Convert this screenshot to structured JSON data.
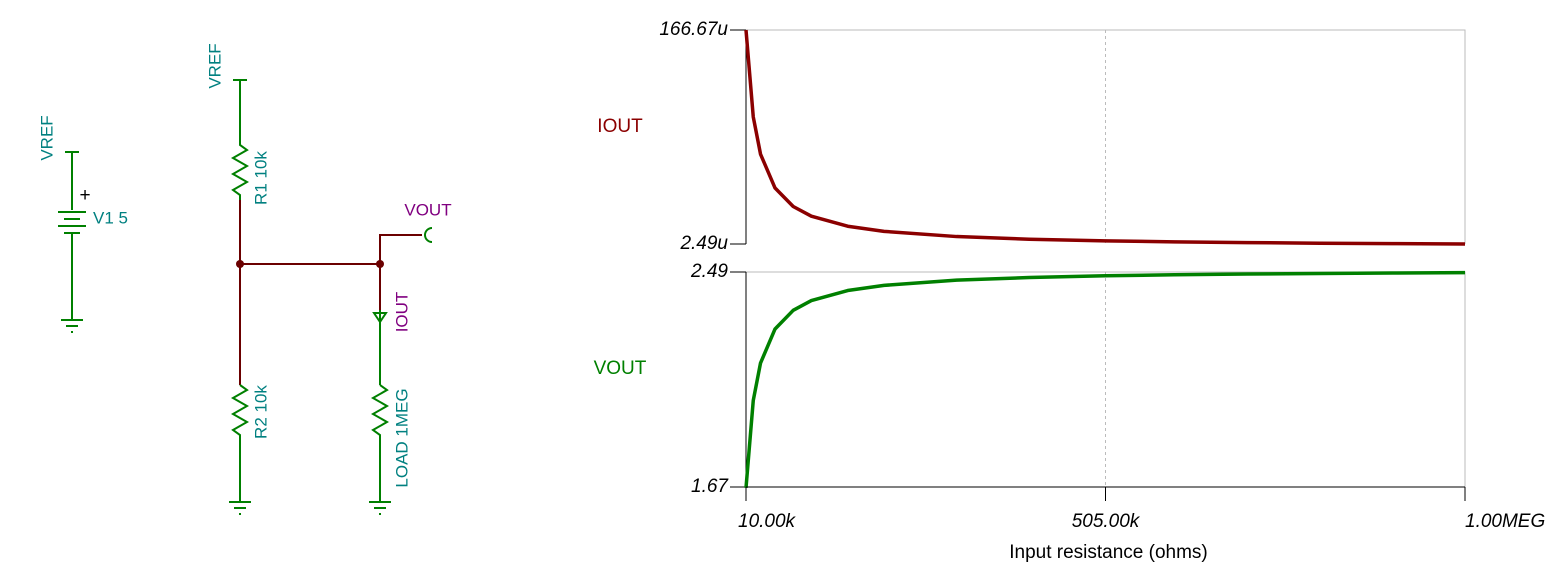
{
  "schematic": {
    "source_label": "VREF",
    "source_plus": "+",
    "source_name": "V1 5",
    "divider_label": "VREF",
    "r1": "R1 10k",
    "r2": "R2 10k",
    "out_label": "VOUT",
    "current_label": "IOUT",
    "load": "LOAD 1MEG"
  },
  "chart_data": [
    {
      "type": "line",
      "ylabel": "IOUT",
      "color": "#8b0000",
      "x": [
        10000,
        20000,
        30000,
        50000,
        75000,
        100000,
        150000,
        200000,
        300000,
        400000,
        505000,
        600000,
        700000,
        800000,
        900000,
        1000000
      ],
      "values": [
        0.00016667,
        0.0001,
        7.143e-05,
        4.545e-05,
        3.125e-05,
        2.381e-05,
        1.613e-05,
        1.22e-05,
        8.197e-06,
        6.173e-06,
        4.902e-06,
        4.132e-06,
        3.546e-06,
        3.106e-06,
        2.762e-06,
        2.488e-06
      ],
      "xlim": [
        10000,
        1000000
      ],
      "ylim": [
        2.49e-06,
        0.00016667
      ],
      "yticks": [
        {
          "value": 0.00016667,
          "label": "166.67u"
        },
        {
          "value": 2.49e-06,
          "label": "2.49u"
        }
      ]
    },
    {
      "type": "line",
      "ylabel": "VOUT",
      "color": "#008000",
      "xlabel": "Input resistance (ohms)",
      "x": [
        10000,
        20000,
        30000,
        50000,
        75000,
        100000,
        150000,
        200000,
        300000,
        400000,
        505000,
        600000,
        700000,
        800000,
        900000,
        1000000
      ],
      "values": [
        1.6667,
        2.0,
        2.1429,
        2.2727,
        2.3438,
        2.381,
        2.4194,
        2.439,
        2.459,
        2.469,
        2.4755,
        2.4793,
        2.4823,
        2.4845,
        2.4862,
        2.4876
      ],
      "xlim": [
        10000,
        1000000
      ],
      "xticks": [
        {
          "value": 10000,
          "label": "10.00k"
        },
        {
          "value": 505000,
          "label": "505.00k"
        },
        {
          "value": 1000000,
          "label": "1.00MEG"
        }
      ],
      "ylim": [
        1.67,
        2.49
      ],
      "yticks": [
        2.49,
        1.67
      ]
    }
  ]
}
